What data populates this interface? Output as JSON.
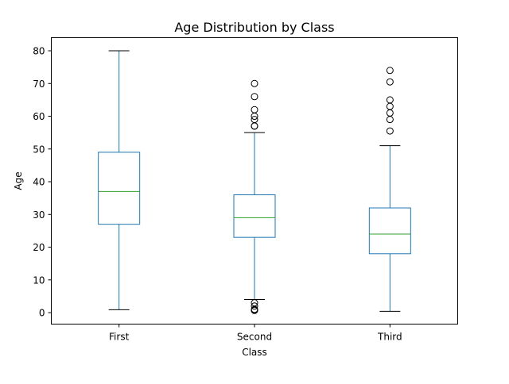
{
  "chart_data": {
    "type": "box",
    "title": "Age Distribution by Class",
    "xlabel": "Class",
    "ylabel": "Age",
    "ylim": [
      -3.5,
      84
    ],
    "yticks": [
      0,
      10,
      20,
      30,
      40,
      50,
      60,
      70,
      80
    ],
    "categories": [
      "First",
      "Second",
      "Third"
    ],
    "boxes": [
      {
        "category": "First",
        "whisker_low": 0.9,
        "q1": 27,
        "median": 37,
        "q3": 49,
        "whisker_high": 80,
        "outliers": []
      },
      {
        "category": "Second",
        "whisker_low": 4,
        "q1": 23,
        "median": 29,
        "q3": 36,
        "whisker_high": 55,
        "outliers": [
          0.67,
          0.83,
          1,
          2,
          3,
          57,
          57,
          59,
          60,
          62,
          66,
          70
        ]
      },
      {
        "category": "Third",
        "whisker_low": 0.42,
        "q1": 18,
        "median": 24,
        "q3": 32,
        "whisker_high": 51,
        "outliers": [
          55.5,
          59,
          61,
          63,
          65,
          70.5,
          74
        ]
      }
    ],
    "colors": {
      "box": "#1f77b4",
      "median": "#2ca02c",
      "outlier": "#000000",
      "axes": "#000000"
    },
    "grid": false,
    "legend": "none"
  }
}
